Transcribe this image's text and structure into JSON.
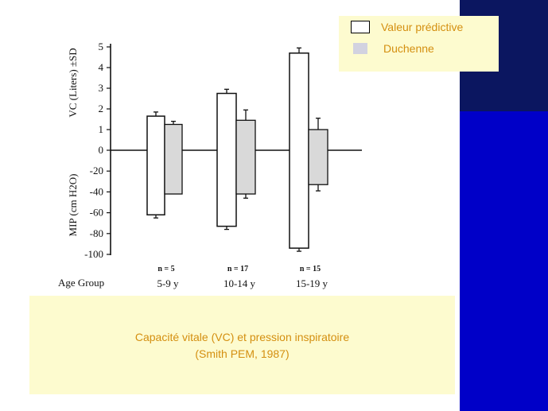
{
  "legend": {
    "predicted_label": "Valeur prédictive",
    "duchenne_label": "Duchenne"
  },
  "caption": {
    "line1": "Capacité vitale (VC) et pression inspiratoire",
    "line2": "(Smith PEM, 1987)"
  },
  "colors": {
    "side_panel_top": "#0b1660",
    "side_panel_bottom": "#0000c8",
    "box_background": "#fdfbcf",
    "text_orange": "#d48f10",
    "duchenne_fill": "#d2d2e0"
  },
  "chart_data": {
    "type": "bar",
    "ylabel_top": "VC (Liters)  ±SD",
    "ylabel_bottom": "MIP (cm H2O)",
    "x_group_title": "Age Group",
    "categories": [
      "5-9 y",
      "10-14 y",
      "15-19 y"
    ],
    "n_labels": [
      "n = 5",
      "n = 17",
      "n = 15"
    ],
    "vc_ticks": [
      "5",
      "4",
      "3",
      "2",
      "1",
      "0"
    ],
    "mip_ticks": [
      "-20",
      "-40",
      "-60",
      "-80",
      "-100"
    ],
    "vc_ylim": [
      0,
      5
    ],
    "mip_ylim": [
      -100,
      0
    ],
    "series": [
      {
        "name": "Valeur prédictive",
        "vc": [
          1.65,
          2.75,
          4.7
        ],
        "vc_sd": [
          0.2,
          0.2,
          0.25
        ],
        "mip": [
          -62,
          -73,
          -94
        ],
        "mip_sd": [
          3,
          3,
          3
        ]
      },
      {
        "name": "Duchenne",
        "vc": [
          1.25,
          1.45,
          1.0
        ],
        "vc_sd": [
          0.15,
          0.5,
          0.55
        ],
        "mip": [
          -42,
          -42,
          -33
        ],
        "mip_sd": [
          0,
          4,
          6
        ]
      }
    ]
  }
}
